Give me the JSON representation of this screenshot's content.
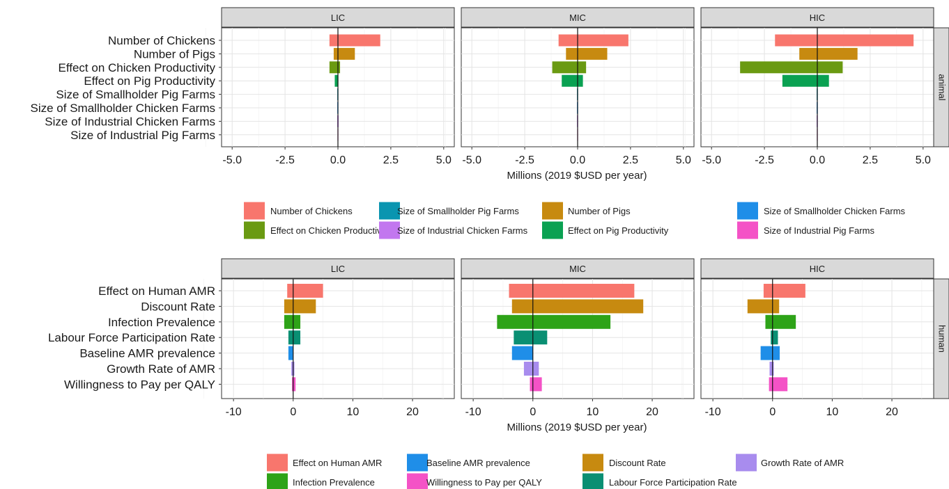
{
  "chart_data": [
    {
      "type": "bar",
      "orientation": "horizontal",
      "facet_row": "animal",
      "facets": [
        "LIC",
        "MIC",
        "HIC"
      ],
      "xlabel": "Millions (2019 $USD per year)",
      "xlim": [
        -5.5,
        5.5
      ],
      "xticks": [
        -5.0,
        -2.5,
        0.0,
        2.5,
        5.0
      ],
      "xtick_labels": [
        "-5.0",
        "-2.5",
        "0.0",
        "2.5",
        "5.0"
      ],
      "categories": [
        "Number of Chickens",
        "Number of Pigs",
        "Effect on Chicken Productivity",
        "Effect on Pig Productivity",
        "Size of Smallholder Pig Farms",
        "Size of Smallholder Chicken Farms",
        "Size of Industrial Chicken Farms",
        "Size of Industrial Pig Farms"
      ],
      "colors": [
        "#f8766d",
        "#c78a10",
        "#6a9a12",
        "#0aa152",
        "#0a95b0",
        "#1f8ee8",
        "#c277ef",
        "#f452c6"
      ],
      "series": [
        {
          "facet": "LIC",
          "low": [
            -0.4,
            -0.2,
            -0.4,
            -0.15,
            -0.03,
            -0.03,
            -0.03,
            -0.02
          ],
          "high": [
            2.0,
            0.8,
            0.1,
            0.02,
            0.02,
            0.02,
            0.03,
            0.02
          ]
        },
        {
          "facet": "MIC",
          "low": [
            -0.9,
            -0.55,
            -1.2,
            -0.75,
            -0.03,
            -0.03,
            -0.03,
            -0.02
          ],
          "high": [
            2.4,
            1.4,
            0.4,
            0.25,
            0.02,
            0.02,
            0.02,
            0.02
          ]
        },
        {
          "facet": "HIC",
          "low": [
            -2.0,
            -0.85,
            -3.65,
            -1.65,
            -0.03,
            -0.03,
            -0.03,
            -0.02
          ],
          "high": [
            4.55,
            1.9,
            1.2,
            0.55,
            0.02,
            0.02,
            0.02,
            0.02
          ]
        }
      ],
      "legend": {
        "position": "bottom",
        "entries": [
          "Number of Chickens",
          "Effect on Chicken Productivity",
          "Size of Smallholder Pig Farms",
          "Size of Industrial Chicken Farms",
          "Number of Pigs",
          "Effect on Pig Productivity",
          "Size of Smallholder Chicken Farms",
          "Size of Industrial Pig Farms"
        ],
        "colors": [
          "#f8766d",
          "#6a9a12",
          "#0a95b0",
          "#c277ef",
          "#c78a10",
          "#0aa152",
          "#1f8ee8",
          "#f452c6"
        ]
      },
      "grid": true
    },
    {
      "type": "bar",
      "orientation": "horizontal",
      "facet_row": "human",
      "facets": [
        "LIC",
        "MIC",
        "HIC"
      ],
      "xlabel": "Millions (2019 $USD per year)",
      "xlim": [
        -12,
        27
      ],
      "xticks": [
        -10,
        0,
        10,
        20
      ],
      "xtick_labels": [
        "-10",
        "0",
        "10",
        "20"
      ],
      "categories": [
        "Effect on Human AMR",
        "Discount Rate",
        "Infection Prevalence",
        "Labour Force Participation Rate",
        "Baseline AMR prevalence",
        "Growth Rate of AMR",
        "Willingness to Pay per QALY"
      ],
      "colors": [
        "#f8766d",
        "#c78a10",
        "#2ea318",
        "#0a8f73",
        "#1f8ee8",
        "#a88cee",
        "#f452c6"
      ],
      "series": [
        {
          "facet": "LIC",
          "low": [
            -1.0,
            -1.5,
            -1.5,
            -0.8,
            -0.8,
            -0.3,
            -0.2
          ],
          "high": [
            5.0,
            3.8,
            1.2,
            1.2,
            0.0,
            0.2,
            0.4
          ]
        },
        {
          "facet": "MIC",
          "low": [
            -4.0,
            -3.5,
            -6.0,
            -3.2,
            -3.5,
            -1.5,
            -0.5
          ],
          "high": [
            17.0,
            18.5,
            13.0,
            2.4,
            0.0,
            1.0,
            1.5
          ]
        },
        {
          "facet": "HIC",
          "low": [
            -1.5,
            -4.2,
            -1.2,
            -0.3,
            -2.0,
            -0.5,
            -0.6
          ],
          "high": [
            5.5,
            1.1,
            3.9,
            0.9,
            1.2,
            0.2,
            2.5
          ]
        }
      ],
      "legend": {
        "position": "bottom",
        "entries": [
          "Effect on Human AMR",
          "Infection Prevalence",
          "Baseline AMR prevalence",
          "Willingness to Pay per QALY",
          "Discount Rate",
          "Labour Force Participation Rate",
          "Growth Rate of AMR"
        ],
        "colors": [
          "#f8766d",
          "#2ea318",
          "#1f8ee8",
          "#f452c6",
          "#c78a10",
          "#0a8f73",
          "#a88cee"
        ]
      },
      "grid": true
    }
  ]
}
